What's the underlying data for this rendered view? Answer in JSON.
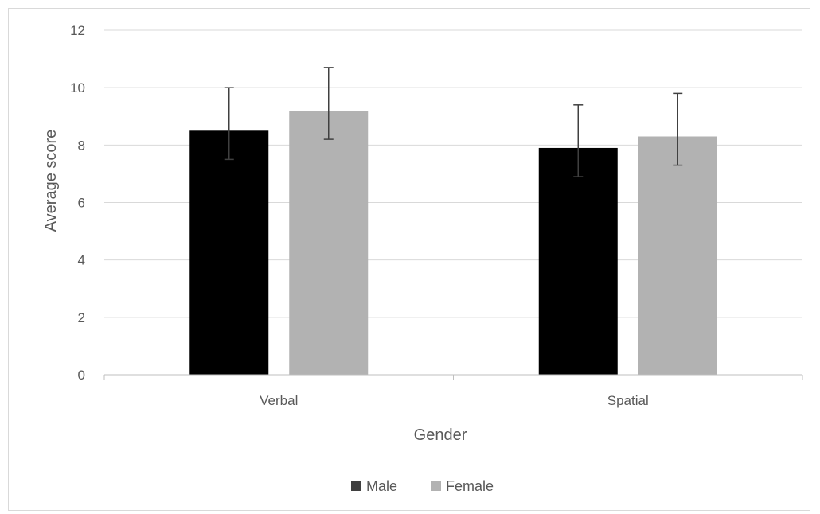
{
  "chart_data": {
    "type": "bar",
    "categories": [
      "Verbal",
      "Spatial"
    ],
    "series": [
      {
        "name": "Male",
        "color": "#000000",
        "values": [
          8.5,
          7.9
        ],
        "error_low": [
          7.5,
          6.9
        ],
        "error_high": [
          10.0,
          9.4
        ]
      },
      {
        "name": "Female",
        "color": "#b2b2b2",
        "values": [
          9.2,
          8.3
        ],
        "error_low": [
          8.2,
          7.3
        ],
        "error_high": [
          10.7,
          9.8
        ]
      }
    ],
    "xlabel": "Gender",
    "ylabel": "Average score",
    "ylim": [
      0,
      12
    ],
    "yticks": [
      "0",
      "2",
      "4",
      "6",
      "8",
      "10",
      "12"
    ],
    "grid": true,
    "legend_position": "bottom"
  }
}
